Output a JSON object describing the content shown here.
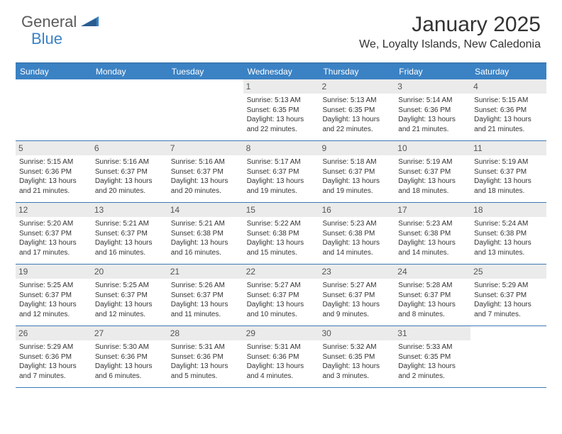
{
  "logo": {
    "part1": "General",
    "part2": "Blue"
  },
  "title": "January 2025",
  "location": "We, Loyalty Islands, New Caledonia",
  "colors": {
    "header_bg": "#3b82c4",
    "header_text": "#ffffff",
    "daynum_bg": "#ebebeb",
    "border": "#3b7ab5",
    "text": "#333333"
  },
  "dayNames": [
    "Sunday",
    "Monday",
    "Tuesday",
    "Wednesday",
    "Thursday",
    "Friday",
    "Saturday"
  ],
  "weeks": [
    [
      {
        "n": "",
        "lines": []
      },
      {
        "n": "",
        "lines": []
      },
      {
        "n": "",
        "lines": []
      },
      {
        "n": "1",
        "lines": [
          "Sunrise: 5:13 AM",
          "Sunset: 6:35 PM",
          "Daylight: 13 hours",
          "and 22 minutes."
        ]
      },
      {
        "n": "2",
        "lines": [
          "Sunrise: 5:13 AM",
          "Sunset: 6:35 PM",
          "Daylight: 13 hours",
          "and 22 minutes."
        ]
      },
      {
        "n": "3",
        "lines": [
          "Sunrise: 5:14 AM",
          "Sunset: 6:36 PM",
          "Daylight: 13 hours",
          "and 21 minutes."
        ]
      },
      {
        "n": "4",
        "lines": [
          "Sunrise: 5:15 AM",
          "Sunset: 6:36 PM",
          "Daylight: 13 hours",
          "and 21 minutes."
        ]
      }
    ],
    [
      {
        "n": "5",
        "lines": [
          "Sunrise: 5:15 AM",
          "Sunset: 6:36 PM",
          "Daylight: 13 hours",
          "and 21 minutes."
        ]
      },
      {
        "n": "6",
        "lines": [
          "Sunrise: 5:16 AM",
          "Sunset: 6:37 PM",
          "Daylight: 13 hours",
          "and 20 minutes."
        ]
      },
      {
        "n": "7",
        "lines": [
          "Sunrise: 5:16 AM",
          "Sunset: 6:37 PM",
          "Daylight: 13 hours",
          "and 20 minutes."
        ]
      },
      {
        "n": "8",
        "lines": [
          "Sunrise: 5:17 AM",
          "Sunset: 6:37 PM",
          "Daylight: 13 hours",
          "and 19 minutes."
        ]
      },
      {
        "n": "9",
        "lines": [
          "Sunrise: 5:18 AM",
          "Sunset: 6:37 PM",
          "Daylight: 13 hours",
          "and 19 minutes."
        ]
      },
      {
        "n": "10",
        "lines": [
          "Sunrise: 5:19 AM",
          "Sunset: 6:37 PM",
          "Daylight: 13 hours",
          "and 18 minutes."
        ]
      },
      {
        "n": "11",
        "lines": [
          "Sunrise: 5:19 AM",
          "Sunset: 6:37 PM",
          "Daylight: 13 hours",
          "and 18 minutes."
        ]
      }
    ],
    [
      {
        "n": "12",
        "lines": [
          "Sunrise: 5:20 AM",
          "Sunset: 6:37 PM",
          "Daylight: 13 hours",
          "and 17 minutes."
        ]
      },
      {
        "n": "13",
        "lines": [
          "Sunrise: 5:21 AM",
          "Sunset: 6:37 PM",
          "Daylight: 13 hours",
          "and 16 minutes."
        ]
      },
      {
        "n": "14",
        "lines": [
          "Sunrise: 5:21 AM",
          "Sunset: 6:38 PM",
          "Daylight: 13 hours",
          "and 16 minutes."
        ]
      },
      {
        "n": "15",
        "lines": [
          "Sunrise: 5:22 AM",
          "Sunset: 6:38 PM",
          "Daylight: 13 hours",
          "and 15 minutes."
        ]
      },
      {
        "n": "16",
        "lines": [
          "Sunrise: 5:23 AM",
          "Sunset: 6:38 PM",
          "Daylight: 13 hours",
          "and 14 minutes."
        ]
      },
      {
        "n": "17",
        "lines": [
          "Sunrise: 5:23 AM",
          "Sunset: 6:38 PM",
          "Daylight: 13 hours",
          "and 14 minutes."
        ]
      },
      {
        "n": "18",
        "lines": [
          "Sunrise: 5:24 AM",
          "Sunset: 6:38 PM",
          "Daylight: 13 hours",
          "and 13 minutes."
        ]
      }
    ],
    [
      {
        "n": "19",
        "lines": [
          "Sunrise: 5:25 AM",
          "Sunset: 6:37 PM",
          "Daylight: 13 hours",
          "and 12 minutes."
        ]
      },
      {
        "n": "20",
        "lines": [
          "Sunrise: 5:25 AM",
          "Sunset: 6:37 PM",
          "Daylight: 13 hours",
          "and 12 minutes."
        ]
      },
      {
        "n": "21",
        "lines": [
          "Sunrise: 5:26 AM",
          "Sunset: 6:37 PM",
          "Daylight: 13 hours",
          "and 11 minutes."
        ]
      },
      {
        "n": "22",
        "lines": [
          "Sunrise: 5:27 AM",
          "Sunset: 6:37 PM",
          "Daylight: 13 hours",
          "and 10 minutes."
        ]
      },
      {
        "n": "23",
        "lines": [
          "Sunrise: 5:27 AM",
          "Sunset: 6:37 PM",
          "Daylight: 13 hours",
          "and 9 minutes."
        ]
      },
      {
        "n": "24",
        "lines": [
          "Sunrise: 5:28 AM",
          "Sunset: 6:37 PM",
          "Daylight: 13 hours",
          "and 8 minutes."
        ]
      },
      {
        "n": "25",
        "lines": [
          "Sunrise: 5:29 AM",
          "Sunset: 6:37 PM",
          "Daylight: 13 hours",
          "and 7 minutes."
        ]
      }
    ],
    [
      {
        "n": "26",
        "lines": [
          "Sunrise: 5:29 AM",
          "Sunset: 6:36 PM",
          "Daylight: 13 hours",
          "and 7 minutes."
        ]
      },
      {
        "n": "27",
        "lines": [
          "Sunrise: 5:30 AM",
          "Sunset: 6:36 PM",
          "Daylight: 13 hours",
          "and 6 minutes."
        ]
      },
      {
        "n": "28",
        "lines": [
          "Sunrise: 5:31 AM",
          "Sunset: 6:36 PM",
          "Daylight: 13 hours",
          "and 5 minutes."
        ]
      },
      {
        "n": "29",
        "lines": [
          "Sunrise: 5:31 AM",
          "Sunset: 6:36 PM",
          "Daylight: 13 hours",
          "and 4 minutes."
        ]
      },
      {
        "n": "30",
        "lines": [
          "Sunrise: 5:32 AM",
          "Sunset: 6:35 PM",
          "Daylight: 13 hours",
          "and 3 minutes."
        ]
      },
      {
        "n": "31",
        "lines": [
          "Sunrise: 5:33 AM",
          "Sunset: 6:35 PM",
          "Daylight: 13 hours",
          "and 2 minutes."
        ]
      },
      {
        "n": "",
        "lines": []
      }
    ]
  ]
}
